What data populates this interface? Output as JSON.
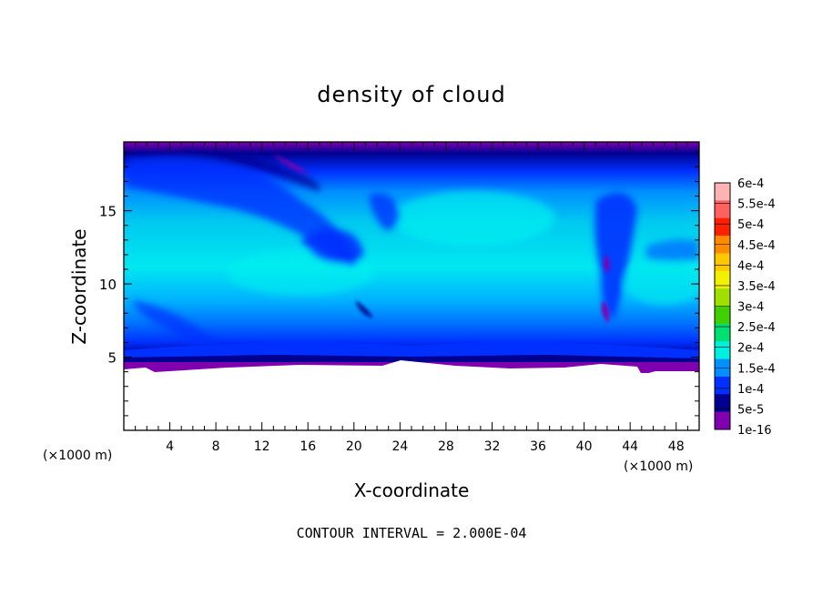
{
  "chart_data": {
    "type": "heatmap",
    "title": "density of cloud",
    "xlabel": "X-coordinate",
    "ylabel": "Z-coordinate",
    "x_unit": "(×1000 m)",
    "x_unit_right": "(×1000 m)",
    "xlim": [
      0,
      50
    ],
    "ylim": [
      0,
      19.7
    ],
    "x_ticks": [
      4,
      8,
      12,
      16,
      20,
      24,
      28,
      32,
      36,
      40,
      44,
      48
    ],
    "y_ticks": [
      5,
      10,
      15
    ],
    "contour_interval_text": "CONTOUR INTERVAL = 2.000E-04",
    "colorbar": {
      "labels": [
        "6e-4",
        "5.5e-4",
        "5e-4",
        "4.5e-4",
        "4e-4",
        "3.5e-4",
        "3e-4",
        "2.5e-4",
        "2e-4",
        "1.5e-4",
        "1e-4",
        "5e-5",
        "1e-16"
      ],
      "colors": [
        "#ffb4b4",
        "#ff6060",
        "#ff2000",
        "#ff8c00",
        "#ffc800",
        "#f0f000",
        "#a0e000",
        "#40d000",
        "#00e070",
        "#00f0e0",
        "#0090ff",
        "#0030ff",
        "#000090",
        "#8000b0"
      ]
    }
  }
}
